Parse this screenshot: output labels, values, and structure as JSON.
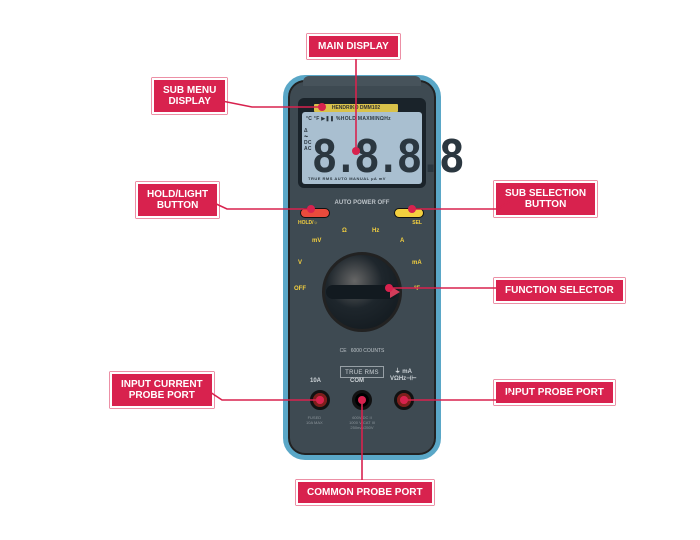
{
  "callouts": {
    "main_display": {
      "label": "MAIN DISPLAY"
    },
    "sub_menu": {
      "label": "SUB MENU\nDISPLAY"
    },
    "hold_light": {
      "label": "HOLD/LIGHT\nBUTTON"
    },
    "sub_selection": {
      "label": "SUB SELECTION\nBUTTON"
    },
    "function_sel": {
      "label": "FUNCTION SELECTOR"
    },
    "input_current": {
      "label": "INPUT CURRENT\nPROBE PORT"
    },
    "input_probe": {
      "label": "INPUT PROBE PORT"
    },
    "common_probe": {
      "label": "COMMON PROBE PORT"
    }
  },
  "meter": {
    "brand": "HENDRIKO DMM102",
    "screen_top_right": "600V CAT II\n1000V CAT III",
    "lcd_small": "°C °F ▶❚❚ %HOLD MAXMINΩHz",
    "lcd_side": "Δ\n⏦\nDC\nAC",
    "digits": "8.8.8.8",
    "lcd_bottom": "TRUE RMS  AUTO  MANUAL  µA mV",
    "auto_power_off": "AUTO POWER OFF",
    "btn_hold": "HOLD/☼",
    "btn_sel": "SEL",
    "dial_positions": {
      "off": "OFF",
      "v": "V",
      "mv": "mV",
      "ohm": "Ω",
      "hz": "Hz",
      "a": "A",
      "ma": "mA",
      "temp": "°F"
    },
    "counts": "6000 COUNTS",
    "ce": "CE",
    "true_rms": "TRUE RMS",
    "port_10a": "10A",
    "port_com": "COM",
    "port_v": "⏚ mA\nVΩHz⊣⊢",
    "fine_l": "FUSED\n10A MAX",
    "fine_c": "600V DC II\n1000 V CAT III\n250mA/250V"
  }
}
